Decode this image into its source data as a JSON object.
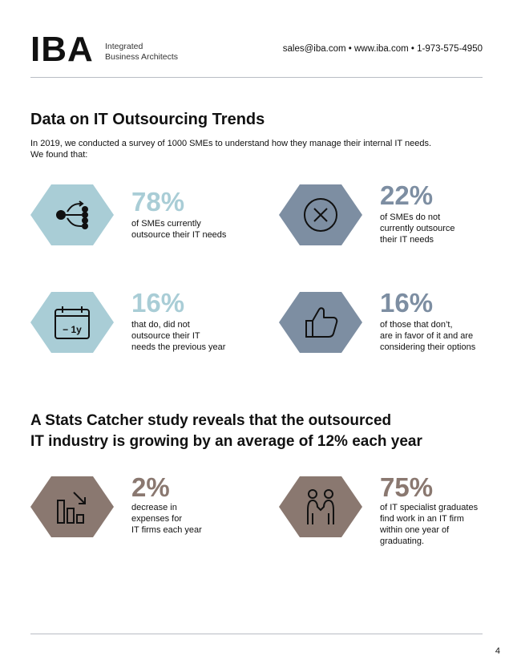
{
  "header": {
    "logo_text": "IBA",
    "logo_subtitle_1": "Integrated",
    "logo_subtitle_2": "Business Architects",
    "contact": "sales@iba.com • www.iba.com • 1-973-575-4950"
  },
  "section1": {
    "title": "Data on IT Outsourcing Trends",
    "intro_line1": "In 2019, we conducted a survey of 1000 SMEs to understand how they manage their internal IT needs.",
    "intro_line2": "We found that:"
  },
  "stats": [
    {
      "value": "78%",
      "lines": [
        "of SMEs currently",
        "outsource their IT needs"
      ],
      "icon": "network-icon"
    },
    {
      "value": "22%",
      "lines": [
        "of SMEs do not",
        "currently outsource",
        "their IT needs"
      ],
      "icon": "close-circle-icon"
    },
    {
      "value": "16%",
      "lines": [
        "that do, did not",
        "outsource their IT",
        "needs the previous year"
      ],
      "icon": "calendar-icon",
      "icon_text": "− 1y"
    },
    {
      "value": "16%",
      "lines": [
        "of those that don’t,",
        "are in favor of it and are",
        "considering their options"
      ],
      "icon": "thumbs-up-icon"
    }
  ],
  "section2": {
    "title_line1": "A Stats Catcher study reveals that the outsourced",
    "title_line2": "IT industry is growing by an average of 12% each year"
  },
  "stats2": [
    {
      "value": "2%",
      "lines": [
        "decrease in",
        "expenses for",
        "IT firms each year"
      ],
      "icon": "bar-chart-decrease-icon"
    },
    {
      "value": "75%",
      "lines": [
        "of IT specialist graduates",
        "find work in an IT firm",
        "within one year of",
        "graduating."
      ],
      "icon": "handshake-icon"
    }
  ],
  "colors": {
    "blue": "#a9cdd6",
    "slate": "#7d8ea2",
    "brown": "#8a7870"
  },
  "footer": {
    "page_number": "4"
  }
}
